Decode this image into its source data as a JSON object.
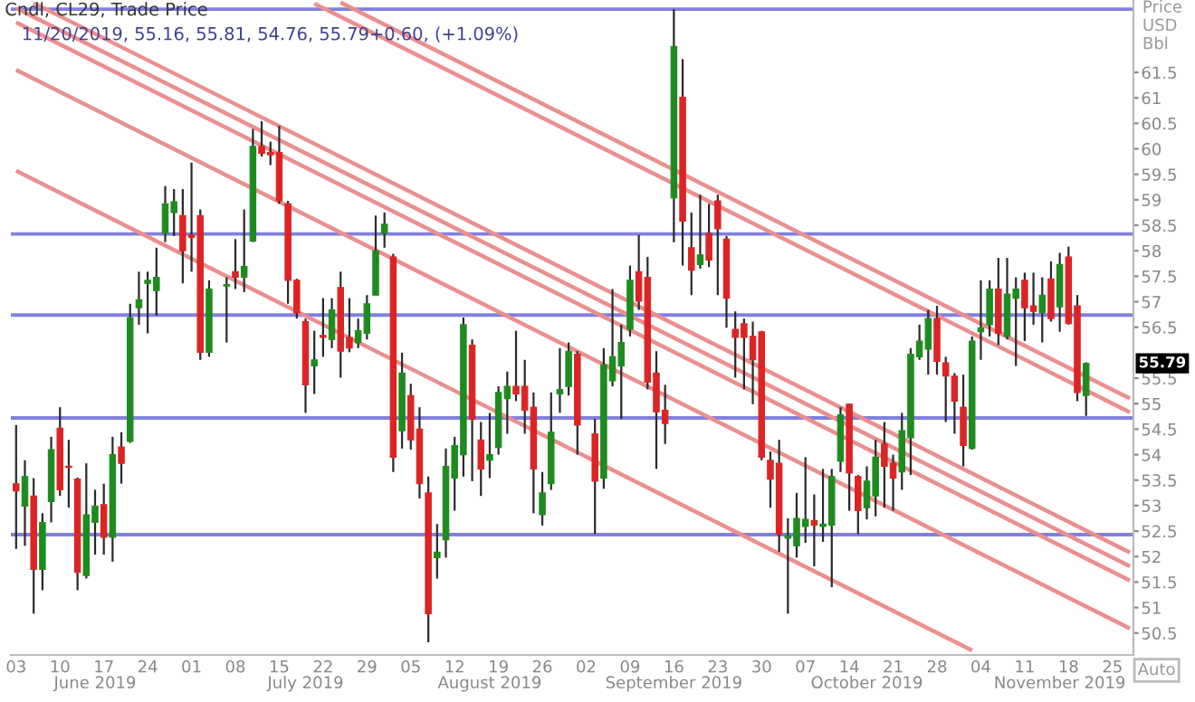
{
  "chart_data": {
    "type": "candlestick",
    "title": "Cndl, CL29, Trade Price",
    "subtitle": "11/20/2019, 55.16, 55.81, 54.76, 55.79+0.60, (+1.09%)",
    "ylabel": "Price\nUSD\nBbl",
    "categories": [
      "03",
      null,
      null,
      null,
      null,
      "10",
      null,
      null,
      null,
      "\nJune 2019",
      "17",
      null,
      null,
      null,
      null,
      "24",
      null,
      null,
      null,
      null,
      "01",
      null,
      null,
      null,
      null,
      "08",
      null,
      null,
      null,
      null,
      "15",
      null,
      null,
      "\nJuly 2019",
      null,
      "22",
      null,
      null,
      null,
      null,
      "29",
      null,
      null,
      null,
      null,
      "05",
      null,
      null,
      null,
      null,
      "12",
      null,
      null,
      null,
      "\nAugust 2019",
      "19",
      null,
      null,
      null,
      null,
      "26",
      null,
      null,
      null,
      null,
      "02",
      null,
      null,
      null,
      null,
      "09",
      null,
      null,
      null,
      null,
      "16\nSeptember 2019",
      null,
      null,
      null,
      null,
      "23",
      null,
      null,
      null,
      null,
      "30",
      null,
      null,
      null,
      null,
      "07",
      null,
      null,
      null,
      null,
      "14",
      null,
      "\nOctober 2019",
      null,
      null,
      "21",
      null,
      null,
      null,
      null,
      "28",
      null,
      null,
      null,
      null,
      "04",
      null,
      null,
      null,
      null,
      "11",
      null,
      null,
      null,
      "\nNovember 2019",
      "18",
      null,
      null,
      null,
      null,
      "25",
      null,
      null
    ],
    "ohlc": [
      [
        53.43,
        54.58,
        52.15,
        53.29
      ],
      [
        52.99,
        53.89,
        52.21,
        53.57
      ],
      [
        53.19,
        53.54,
        50.88,
        51.75
      ],
      [
        51.75,
        52.85,
        51.34,
        52.67
      ],
      [
        53.08,
        54.35,
        52.67,
        54.1
      ],
      [
        54.52,
        54.93,
        53.19,
        53.31
      ],
      [
        53.77,
        54.29,
        52.96,
        53.75
      ],
      [
        53.52,
        53.55,
        51.34,
        51.69
      ],
      [
        51.63,
        53.83,
        51.57,
        52.82
      ],
      [
        52.67,
        53.31,
        52.04,
        52.99
      ],
      [
        53.02,
        53.43,
        52.04,
        52.38
      ],
      [
        52.38,
        54.35,
        51.9,
        54.0
      ],
      [
        54.15,
        54.44,
        53.43,
        53.83
      ],
      [
        54.26,
        56.96,
        54.23,
        56.69
      ],
      [
        56.88,
        57.59,
        56.55,
        57.04
      ],
      [
        57.36,
        57.59,
        56.38,
        57.42
      ],
      [
        57.22,
        58.06,
        56.73,
        57.48
      ],
      [
        58.34,
        59.27,
        58.17,
        58.92
      ],
      [
        58.75,
        59.21,
        58.29,
        58.96
      ],
      [
        58.69,
        59.21,
        57.36,
        58.0
      ],
      [
        58.31,
        59.73,
        57.59,
        58.26
      ],
      [
        58.69,
        58.81,
        55.86,
        56.01
      ],
      [
        56.01,
        57.42,
        55.92,
        57.25
      ],
      null,
      [
        57.31,
        57.48,
        56.2,
        57.32
      ],
      [
        57.59,
        58.23,
        57.25,
        57.48
      ],
      [
        57.48,
        58.81,
        57.19,
        57.69
      ],
      [
        58.19,
        60.39,
        58.17,
        60.05
      ],
      [
        60.05,
        60.54,
        59.85,
        59.91
      ],
      [
        59.93,
        60.14,
        59.68,
        59.88
      ],
      [
        59.93,
        60.45,
        58.92,
        58.98
      ],
      [
        58.92,
        58.98,
        56.96,
        57.42
      ],
      [
        57.42,
        57.45,
        56.67,
        56.78
      ],
      [
        56.61,
        56.67,
        54.82,
        55.37
      ],
      [
        55.74,
        56.43,
        55.19,
        55.86
      ],
      [
        56.34,
        57.07,
        55.92,
        56.3
      ],
      [
        56.26,
        57.07,
        56.09,
        56.84
      ],
      [
        57.28,
        57.59,
        55.51,
        56.03
      ],
      [
        56.3,
        57.07,
        56.01,
        56.09
      ],
      [
        56.2,
        56.67,
        56.09,
        56.43
      ],
      [
        56.38,
        57.13,
        56.26,
        56.96
      ],
      [
        57.13,
        58.69,
        57.13,
        58.0
      ],
      [
        58.34,
        58.75,
        58.06,
        58.52
      ],
      [
        57.88,
        57.94,
        53.66,
        53.95
      ],
      [
        54.47,
        56.0,
        54.12,
        55.6
      ],
      [
        55.16,
        55.39,
        54.1,
        54.29
      ],
      [
        54.5,
        54.93,
        53.14,
        53.43
      ],
      [
        53.25,
        53.57,
        50.32,
        50.88
      ],
      [
        51.98,
        52.64,
        51.57,
        52.09
      ],
      [
        52.33,
        54.12,
        51.98,
        53.77
      ],
      [
        53.54,
        54.35,
        52.9,
        54.18
      ],
      [
        54.0,
        56.69,
        53.57,
        56.55
      ],
      [
        56.15,
        56.26,
        53.48,
        54.7
      ],
      [
        54.29,
        54.64,
        53.19,
        53.72
      ],
      [
        53.89,
        54.82,
        53.54,
        54.0
      ],
      [
        54.14,
        55.34,
        54.0,
        55.22
      ],
      [
        55.1,
        55.63,
        54.41,
        55.34
      ],
      [
        55.34,
        56.43,
        55.05,
        55.19
      ],
      [
        55.34,
        55.86,
        54.41,
        54.87
      ],
      [
        54.93,
        55.22,
        52.85,
        53.72
      ],
      [
        52.82,
        53.66,
        52.61,
        53.25
      ],
      [
        53.43,
        55.22,
        53.31,
        54.44
      ],
      [
        55.19,
        56.09,
        54.82,
        55.28
      ],
      [
        55.34,
        56.2,
        55.16,
        56.03
      ],
      [
        55.97,
        56.03,
        54.0,
        54.58
      ],
      null,
      [
        54.41,
        54.7,
        52.44,
        53.48
      ],
      [
        53.54,
        56.09,
        53.33,
        55.76
      ],
      [
        55.45,
        57.25,
        55.34,
        55.92
      ],
      [
        55.74,
        56.55,
        54.7,
        56.2
      ],
      [
        56.46,
        57.71,
        56.32,
        57.42
      ],
      [
        57.59,
        58.31,
        56.84,
        57.01
      ],
      [
        57.48,
        57.88,
        55.28,
        55.42
      ],
      [
        55.6,
        56.03,
        53.72,
        54.84
      ],
      [
        54.87,
        55.37,
        54.21,
        54.61
      ],
      [
        59.04,
        62.74,
        58.17,
        62.01
      ],
      [
        61.01,
        61.76,
        57.71,
        58.58
      ],
      [
        58.06,
        58.75,
        57.13,
        57.62
      ],
      [
        57.73,
        59.1,
        57.65,
        57.92
      ],
      [
        58.34,
        58.92,
        57.68,
        57.82
      ],
      [
        58.98,
        59.1,
        57.13,
        58.43
      ],
      [
        58.23,
        58.29,
        56.49,
        57.07
      ],
      [
        56.46,
        56.81,
        55.51,
        56.3
      ],
      [
        56.57,
        56.67,
        55.28,
        56.3
      ],
      [
        56.32,
        56.61,
        54.99,
        55.86
      ],
      [
        56.41,
        56.43,
        53.89,
        53.95
      ],
      [
        53.89,
        54.06,
        52.96,
        53.52
      ],
      [
        53.83,
        54.29,
        52.09,
        52.44
      ],
      [
        52.36,
        52.75,
        50.88,
        52.41
      ],
      [
        52.21,
        53.25,
        51.98,
        52.75
      ],
      [
        52.59,
        53.95,
        52.27,
        52.73
      ],
      [
        52.71,
        53.22,
        51.81,
        52.62
      ],
      [
        52.59,
        53.72,
        52.29,
        52.64
      ],
      [
        52.62,
        53.72,
        51.4,
        53.57
      ],
      [
        53.87,
        54.93,
        53.66,
        54.78
      ],
      [
        54.99,
        55.0,
        52.9,
        53.64
      ],
      [
        53.57,
        53.6,
        52.44,
        52.9
      ],
      [
        52.96,
        53.77,
        52.73,
        53.48
      ],
      [
        53.19,
        54.29,
        52.79,
        53.95
      ],
      [
        54.21,
        54.64,
        52.96,
        53.77
      ],
      [
        53.83,
        54.0,
        52.9,
        53.54
      ],
      [
        53.66,
        54.82,
        53.31,
        54.47
      ],
      [
        54.33,
        56.09,
        53.6,
        55.97
      ],
      [
        55.92,
        56.55,
        55.86,
        56.23
      ],
      [
        56.07,
        56.84,
        55.57,
        56.67
      ],
      [
        56.67,
        56.92,
        55.57,
        55.83
      ],
      [
        55.8,
        55.92,
        54.64,
        55.54
      ],
      [
        55.54,
        55.6,
        54.41,
        55.05
      ],
      [
        54.93,
        55.57,
        53.77,
        54.18
      ],
      [
        54.12,
        56.32,
        54.1,
        56.23
      ],
      [
        56.41,
        57.42,
        55.86,
        56.49
      ],
      [
        56.55,
        57.42,
        56.32,
        57.25
      ],
      [
        57.25,
        57.86,
        56.15,
        56.38
      ],
      [
        56.32,
        57.86,
        56.26,
        57.15
      ],
      [
        57.07,
        57.48,
        55.74,
        57.25
      ],
      [
        57.42,
        57.57,
        56.23,
        56.88
      ],
      [
        56.92,
        57.57,
        56.55,
        56.81
      ],
      [
        56.78,
        57.48,
        56.2,
        57.13
      ],
      [
        57.45,
        57.79,
        56.61,
        56.67
      ],
      [
        56.9,
        57.96,
        56.41,
        57.73
      ],
      [
        57.88,
        58.08,
        56.55,
        56.57
      ],
      [
        56.92,
        57.13,
        55.05,
        55.22
      ],
      [
        55.16,
        55.81,
        54.76,
        55.79
      ],
      null,
      null,
      null,
      null,
      null
    ],
    "colors": [
      "#dc2424",
      "#1e8b1e",
      "#dc2424",
      "#1e8b1e",
      "#1e8b1e",
      "#dc2424",
      "#dc2424",
      "#dc2424",
      "#1e8b1e",
      "#1e8b1e",
      "#dc2424",
      "#1e8b1e",
      "#dc2424",
      "#1e8b1e",
      "#1e8b1e",
      "#1e8b1e",
      "#1e8b1e",
      "#1e8b1e",
      "#1e8b1e",
      "#dc2424",
      "#dc2424",
      "#dc2424",
      "#1e8b1e",
      null,
      "#1e8b1e",
      "#dc2424",
      "#1e8b1e",
      "#1e8b1e",
      "#dc2424",
      "#dc2424",
      "#dc2424",
      "#dc2424",
      "#dc2424",
      "#dc2424",
      "#1e8b1e",
      "#dc2424",
      "#1e8b1e",
      "#dc2424",
      "#dc2424",
      "#1e8b1e",
      "#1e8b1e",
      "#1e8b1e",
      "#1e8b1e",
      "#dc2424",
      "#1e8b1e",
      "#dc2424",
      "#dc2424",
      "#dc2424",
      "#1e8b1e",
      "#1e8b1e",
      "#1e8b1e",
      "#1e8b1e",
      "#dc2424",
      "#dc2424",
      "#1e8b1e",
      "#1e8b1e",
      "#1e8b1e",
      "#dc2424",
      "#dc2424",
      "#dc2424",
      "#1e8b1e",
      "#1e8b1e",
      "#1e8b1e",
      "#1e8b1e",
      "#dc2424",
      null,
      "#dc2424",
      "#1e8b1e",
      "#1e8b1e",
      "#1e8b1e",
      "#1e8b1e",
      "#dc2424",
      "#dc2424",
      "#dc2424",
      "#dc2424",
      "#1e8b1e",
      "#dc2424",
      "#dc2424",
      "#1e8b1e",
      "#dc2424",
      "#dc2424",
      "#dc2424",
      "#dc2424",
      "#dc2424",
      "#dc2424",
      "#dc2424",
      "#dc2424",
      "#dc2424",
      "#1e8b1e",
      "#1e8b1e",
      "#1e8b1e",
      "#dc2424",
      "#1e8b1e",
      "#1e8b1e",
      "#1e8b1e",
      "#dc2424",
      "#dc2424",
      "#1e8b1e",
      "#1e8b1e",
      "#dc2424",
      "#dc2424",
      "#1e8b1e",
      "#1e8b1e",
      "#1e8b1e",
      "#1e8b1e",
      "#dc2424",
      "#dc2424",
      "#dc2424",
      "#dc2424",
      "#1e8b1e",
      "#1e8b1e",
      "#1e8b1e",
      "#dc2424",
      "#1e8b1e",
      "#1e8b1e",
      "#dc2424",
      "#dc2424",
      "#1e8b1e",
      "#dc2424",
      "#1e8b1e",
      "#dc2424",
      "#dc2424",
      "#1e8b1e",
      null,
      null,
      null,
      null,
      null
    ],
    "series": [
      {
        "type": "line",
        "color": "#ec8e8e",
        "values": [
          null,
          null,
          null,
          null,
          null,
          null,
          null,
          null,
          null,
          null,
          null,
          null,
          null,
          null,
          null,
          null,
          null,
          null,
          null,
          null,
          null,
          null,
          null,
          null,
          null,
          null,
          null,
          null,
          null,
          null,
          null,
          null,
          null,
          null,
          null,
          null,
          null,
          62.87,
          null,
          null,
          null,
          null,
          null,
          null,
          null,
          null,
          null,
          null,
          null,
          null,
          null,
          null,
          null,
          null,
          null,
          null,
          null,
          null,
          null,
          null,
          null,
          null,
          null,
          null,
          null,
          null,
          null,
          null,
          null,
          null,
          null,
          null,
          null,
          null,
          null,
          null,
          null,
          null,
          null,
          null,
          null,
          null,
          null,
          null,
          null,
          null,
          null,
          null,
          null,
          null,
          null,
          null,
          null,
          null,
          null,
          null,
          null,
          null,
          null,
          null,
          null,
          null,
          null,
          null,
          null,
          null,
          null,
          null,
          null,
          null,
          null,
          null,
          null,
          null,
          null,
          null,
          null,
          null,
          null,
          null,
          null,
          null,
          null,
          null,
          null,
          null,
          null,
          55.1
        ]
      },
      {
        "type": "line",
        "color": "#ec8e8e",
        "values": [
          null,
          null,
          null,
          null,
          null,
          null,
          null,
          null,
          null,
          null,
          null,
          null,
          null,
          null,
          null,
          null,
          null,
          null,
          null,
          null,
          null,
          null,
          null,
          null,
          null,
          null,
          null,
          null,
          null,
          null,
          null,
          null,
          null,
          null,
          62.85,
          null,
          null,
          null,
          null,
          null,
          null,
          null,
          null,
          null,
          null,
          null,
          null,
          null,
          null,
          null,
          null,
          null,
          null,
          null,
          null,
          null,
          null,
          null,
          null,
          null,
          null,
          null,
          null,
          null,
          null,
          null,
          null,
          null,
          null,
          null,
          null,
          null,
          null,
          null,
          null,
          null,
          null,
          null,
          null,
          null,
          null,
          null,
          null,
          null,
          null,
          null,
          null,
          null,
          null,
          null,
          null,
          null,
          null,
          null,
          null,
          null,
          null,
          null,
          null,
          null,
          null,
          null,
          null,
          null,
          null,
          null,
          null,
          null,
          null,
          null,
          null,
          null,
          null,
          null,
          null,
          null,
          null,
          null,
          null,
          null,
          null,
          null,
          null,
          null,
          null,
          null,
          null,
          54.83
        ]
      },
      {
        "type": "line",
        "color": "#ec8e8e",
        "values": [
          null,
          null,
          62.86,
          null,
          null,
          null,
          null,
          null,
          null,
          null,
          null,
          null,
          null,
          null,
          null,
          null,
          null,
          null,
          null,
          null,
          null,
          null,
          null,
          null,
          null,
          null,
          null,
          null,
          null,
          null,
          null,
          null,
          null,
          null,
          null,
          null,
          null,
          null,
          null,
          null,
          null,
          null,
          null,
          null,
          null,
          null,
          null,
          null,
          null,
          null,
          null,
          null,
          null,
          null,
          null,
          null,
          null,
          null,
          null,
          null,
          null,
          null,
          null,
          null,
          null,
          null,
          null,
          null,
          null,
          null,
          null,
          null,
          null,
          null,
          null,
          null,
          null,
          null,
          null,
          null,
          null,
          null,
          null,
          null,
          null,
          null,
          null,
          null,
          null,
          null,
          null,
          null,
          null,
          null,
          null,
          null,
          null,
          null,
          null,
          null,
          null,
          null,
          null,
          null,
          null,
          null,
          null,
          null,
          null,
          null,
          null,
          null,
          null,
          null,
          null,
          null,
          null,
          null,
          null,
          null,
          null,
          null,
          null,
          null,
          null,
          null,
          null,
          52.08
        ]
      },
      {
        "type": "line",
        "color": "#ec8e8e",
        "values": [
          62.76,
          null,
          null,
          null,
          null,
          null,
          null,
          null,
          null,
          null,
          null,
          null,
          null,
          null,
          null,
          null,
          null,
          null,
          null,
          null,
          null,
          null,
          null,
          null,
          null,
          null,
          null,
          null,
          null,
          null,
          null,
          null,
          null,
          null,
          null,
          null,
          null,
          null,
          null,
          null,
          null,
          null,
          null,
          null,
          null,
          null,
          null,
          null,
          null,
          null,
          null,
          null,
          null,
          null,
          null,
          null,
          null,
          null,
          null,
          null,
          null,
          null,
          null,
          null,
          null,
          null,
          null,
          null,
          null,
          null,
          null,
          null,
          null,
          null,
          null,
          null,
          null,
          null,
          null,
          null,
          null,
          null,
          null,
          null,
          null,
          null,
          null,
          null,
          null,
          null,
          null,
          null,
          null,
          null,
          null,
          null,
          null,
          null,
          null,
          null,
          null,
          null,
          null,
          null,
          null,
          null,
          null,
          null,
          null,
          null,
          null,
          null,
          null,
          null,
          null,
          null,
          null,
          null,
          null,
          null,
          null,
          null,
          null,
          null,
          null,
          null,
          null,
          51.81
        ]
      },
      {
        "type": "line",
        "color": "#ec8e8e",
        "values": [
          62.48,
          null,
          null,
          null,
          null,
          null,
          null,
          null,
          null,
          null,
          null,
          null,
          null,
          null,
          null,
          null,
          null,
          null,
          null,
          null,
          null,
          null,
          null,
          null,
          null,
          null,
          null,
          null,
          null,
          null,
          null,
          null,
          null,
          null,
          null,
          null,
          null,
          null,
          null,
          null,
          null,
          null,
          null,
          null,
          null,
          null,
          null,
          null,
          null,
          null,
          null,
          null,
          null,
          null,
          null,
          null,
          null,
          null,
          null,
          null,
          null,
          null,
          null,
          null,
          null,
          null,
          null,
          null,
          null,
          null,
          null,
          null,
          null,
          null,
          null,
          null,
          null,
          null,
          null,
          null,
          null,
          null,
          null,
          null,
          null,
          null,
          null,
          null,
          null,
          null,
          null,
          null,
          null,
          null,
          null,
          null,
          null,
          null,
          null,
          null,
          null,
          null,
          null,
          null,
          null,
          null,
          null,
          null,
          null,
          null,
          null,
          null,
          null,
          null,
          null,
          null,
          null,
          null,
          null,
          null,
          null,
          null,
          null,
          null,
          null,
          null,
          null,
          51.53
        ]
      },
      {
        "type": "line",
        "color": "#ec8e8e",
        "values": [
          61.55,
          null,
          null,
          null,
          null,
          null,
          null,
          null,
          null,
          null,
          null,
          null,
          null,
          null,
          null,
          null,
          null,
          null,
          null,
          null,
          null,
          null,
          null,
          null,
          null,
          null,
          null,
          null,
          null,
          null,
          null,
          null,
          null,
          null,
          null,
          null,
          null,
          null,
          null,
          null,
          null,
          null,
          null,
          null,
          null,
          null,
          null,
          null,
          null,
          null,
          null,
          null,
          null,
          null,
          null,
          null,
          null,
          null,
          null,
          null,
          null,
          null,
          null,
          null,
          null,
          null,
          null,
          null,
          null,
          null,
          null,
          null,
          null,
          null,
          null,
          null,
          null,
          null,
          null,
          null,
          null,
          null,
          null,
          null,
          null,
          null,
          null,
          null,
          null,
          null,
          null,
          null,
          null,
          null,
          null,
          null,
          null,
          null,
          null,
          null,
          null,
          null,
          null,
          null,
          null,
          null,
          null,
          null,
          null,
          null,
          null,
          null,
          null,
          null,
          null,
          null,
          null,
          null,
          null,
          null,
          null,
          null,
          null,
          null,
          null,
          null,
          null,
          50.59
        ]
      },
      {
        "type": "line",
        "color": "#ec8e8e",
        "values": [
          59.57,
          null,
          null,
          null,
          null,
          null,
          null,
          null,
          null,
          null,
          null,
          null,
          null,
          null,
          null,
          null,
          null,
          null,
          null,
          null,
          null,
          null,
          null,
          null,
          null,
          null,
          null,
          null,
          null,
          null,
          null,
          null,
          null,
          null,
          null,
          null,
          null,
          null,
          null,
          null,
          null,
          null,
          null,
          null,
          null,
          null,
          null,
          null,
          null,
          null,
          null,
          null,
          null,
          null,
          null,
          null,
          null,
          null,
          null,
          null,
          null,
          null,
          null,
          null,
          null,
          null,
          null,
          null,
          null,
          null,
          null,
          null,
          null,
          null,
          null,
          null,
          null,
          null,
          null,
          null,
          null,
          null,
          null,
          null,
          null,
          null,
          null,
          null,
          null,
          null,
          null,
          null,
          null,
          null,
          null,
          null,
          null,
          null,
          null,
          null,
          null,
          null,
          null,
          null,
          null,
          null,
          null,
          null,
          null,
          50.16,
          null,
          null,
          null,
          null,
          null,
          null,
          null,
          null,
          null,
          null,
          null,
          null,
          null,
          null,
          null,
          null,
          null,
          null
        ]
      }
    ],
    "ref_lines": [
      {
        "axis": "y",
        "value": 62.74,
        "color": "#8080e0"
      },
      {
        "axis": "y",
        "value": 58.33,
        "color": "#8080e0"
      },
      {
        "axis": "y",
        "value": 56.74,
        "color": "#8080e0"
      },
      {
        "axis": "y",
        "value": 54.72,
        "color": "#8080e0"
      },
      {
        "axis": "y",
        "value": 52.43,
        "color": "#8080e0"
      }
    ],
    "ylim": [
      50.07,
      62.92
    ],
    "yticks": [
      50.5,
      51,
      51.5,
      52,
      52.5,
      53,
      53.5,
      54,
      54.5,
      55,
      55.5,
      56.5,
      57,
      57.5,
      58,
      58.5,
      59,
      59.5,
      60,
      60.5,
      61,
      61.5
    ],
    "annotations": [
      {
        "text": "55.79",
        "y": 55.79
      },
      "Auto"
    ]
  }
}
